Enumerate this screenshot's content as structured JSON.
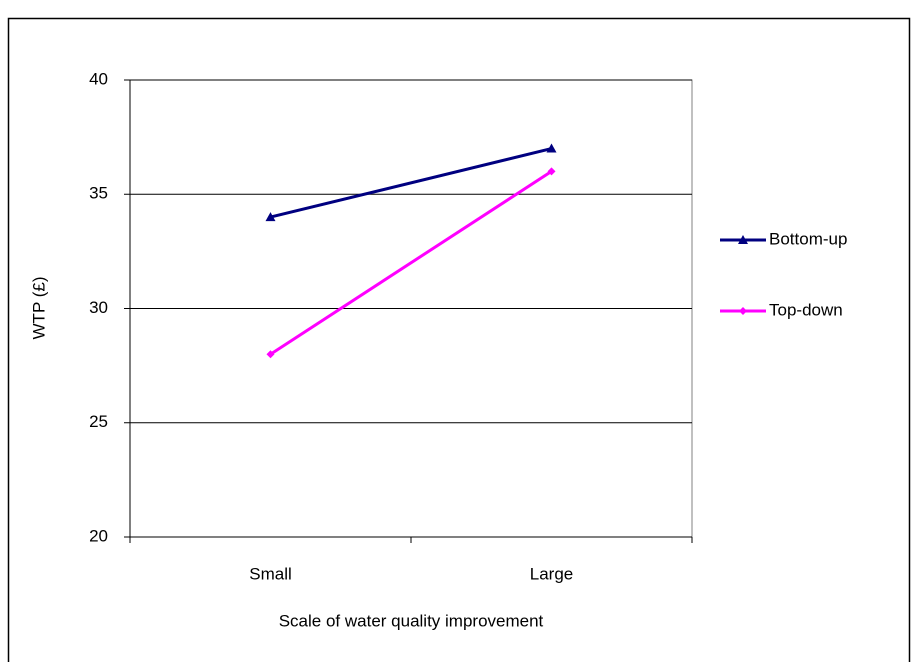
{
  "chart_data": {
    "type": "line",
    "x_label": "Scale of water quality improvement",
    "y_label": "WTP (£)",
    "categories": [
      "Small",
      "Large"
    ],
    "series": [
      {
        "name": "Bottom-up",
        "color": "#000080",
        "marker": "triangle",
        "values": [
          34,
          37
        ]
      },
      {
        "name": "Top-down",
        "color": "#ff00ff",
        "marker": "diamond",
        "values": [
          28,
          36
        ]
      }
    ],
    "ylim": [
      20,
      40
    ],
    "yticks": [
      20,
      25,
      30,
      35,
      40
    ],
    "grid": true,
    "legend": "right"
  }
}
